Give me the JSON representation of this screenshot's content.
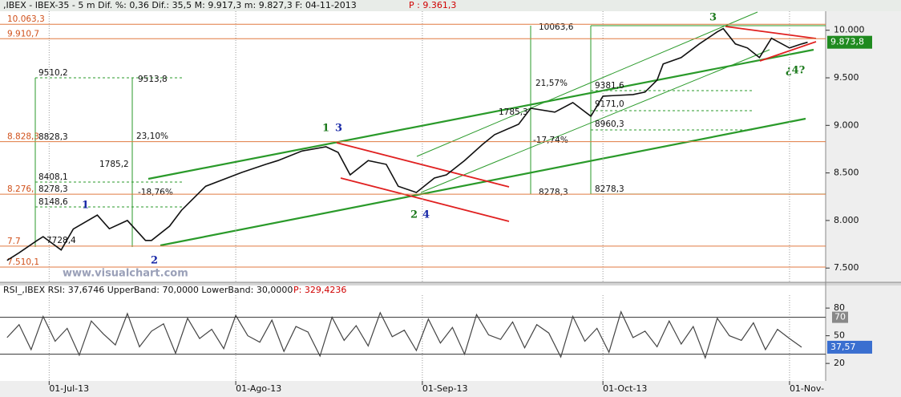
{
  "header": {
    "text": ",IBEX - IBEX-35 - 5 m Dif. %: 0,36 Dif.: 35,5 M: 9.917,3 m: 9.827,3 F: 04-11-2013",
    "price": "P : 9.361,3"
  },
  "watermark": "www.visualchart.com",
  "chart_data": [
    {
      "type": "line",
      "color": "#111111",
      "x": [
        0,
        2,
        5,
        6,
        9,
        11,
        15,
        17,
        20,
        23,
        24,
        27,
        29,
        33,
        39,
        43,
        45,
        49,
        53,
        55,
        57,
        60,
        63,
        65,
        68,
        71,
        73,
        76,
        79,
        81,
        85,
        87,
        91,
        94,
        97,
        99,
        104,
        106,
        108,
        109,
        112,
        115,
        118,
        119,
        121,
        123,
        125,
        127,
        130,
        132,
        133
      ],
      "values": [
        7580,
        7660,
        7790,
        7830,
        7690,
        7910,
        8057,
        7913,
        8000,
        7790,
        7790,
        7940,
        8108,
        8360,
        8505,
        8590,
        8630,
        8730,
        8775,
        8716,
        8480,
        8630,
        8590,
        8360,
        8294,
        8446,
        8480,
        8630,
        8800,
        8902,
        9012,
        9180,
        9139,
        9240,
        9096,
        9307,
        9324,
        9350,
        9476,
        9645,
        9713,
        9856,
        9983,
        10017,
        9856,
        9814,
        9713,
        9916,
        9814,
        9856,
        9873.8
      ],
      "xlim": [
        -0.5,
        136
      ],
      "ylim": [
        7350,
        10200
      ],
      "yticks": [
        {
          "value": 10000,
          "label": "10.000"
        },
        {
          "value": 9500,
          "label": "9.500"
        },
        {
          "value": 9000,
          "label": "9.000"
        },
        {
          "value": 8500,
          "label": "8.500"
        },
        {
          "value": 8000,
          "label": "8.000"
        },
        {
          "value": 7500,
          "label": "7.500"
        }
      ],
      "levels": [
        {
          "value": 10063.3,
          "label": "10.063,3"
        },
        {
          "value": 9910.7,
          "label": "9.910,7"
        },
        {
          "value": 8828.3,
          "label": "8.828,3"
        },
        {
          "value": 8276,
          "label": "8.276,"
        },
        {
          "value": 7730,
          "label": "7.7"
        },
        {
          "value": 7510.1,
          "label": "7.510,1"
        }
      ],
      "last_value": {
        "value": 9873.8,
        "label": "9.873,8"
      },
      "annotations": [
        "9510,2",
        "9513,8",
        "23,10%",
        "1785,2",
        "8408,1",
        "8278,3",
        "-18,76%",
        "8148,6",
        "7728,4",
        "10063,6",
        "21,57%",
        "1785,3",
        "9381,6",
        "9171,0",
        "8960,3",
        "-17,74%",
        "8278,3",
        "8278,3",
        "8828,3"
      ],
      "waves": [
        "1",
        "2",
        "1",
        "3",
        "2",
        "4",
        "3",
        "¿4?"
      ]
    },
    {
      "type": "line",
      "title": "RSI_,IBEX RSI: 37,6746 UpperBand: 70,0000 LowerBand: 30,0000",
      "title_price": "P: 329,4236",
      "color": "#444444",
      "x": [
        0,
        2,
        4,
        6,
        8,
        10,
        12,
        14,
        16,
        18,
        20,
        22,
        24,
        26,
        28,
        30,
        32,
        34,
        36,
        38,
        40,
        42,
        44,
        46,
        48,
        50,
        52,
        54,
        56,
        58,
        60,
        62,
        64,
        66,
        68,
        70,
        72,
        74,
        76,
        78,
        80,
        82,
        84,
        86,
        88,
        90,
        92,
        94,
        96,
        98,
        100,
        102,
        104,
        106,
        108,
        110,
        112,
        114,
        116,
        118,
        120,
        122,
        124,
        126,
        128,
        130,
        132
      ],
      "values": [
        48,
        62,
        35,
        71,
        44,
        58,
        29,
        66,
        52,
        40,
        74,
        38,
        55,
        63,
        31,
        69,
        47,
        57,
        36,
        72,
        50,
        43,
        67,
        33,
        60,
        54,
        28,
        70,
        45,
        61,
        39,
        75,
        49,
        56,
        34,
        68,
        42,
        59,
        30,
        73,
        51,
        46,
        65,
        37,
        62,
        53,
        27,
        71,
        44,
        58,
        32,
        76,
        48,
        55,
        38,
        66,
        41,
        60,
        26,
        69,
        50,
        45,
        64,
        35,
        57,
        47,
        37.57
      ],
      "xlim": [
        -0.5,
        136
      ],
      "ylim": [
        1,
        94
      ],
      "yticks": [
        20,
        50,
        80
      ],
      "bands": [
        70,
        30
      ],
      "last_value": {
        "value": 37.57,
        "label": "37,57"
      },
      "xticks": [
        {
          "value": 7,
          "label": "01-Jul-13"
        },
        {
          "value": 38,
          "label": "01-Ago-13"
        },
        {
          "value": 69,
          "label": "01-Sep-13"
        },
        {
          "value": 99,
          "label": "01-Oct-13"
        },
        {
          "value": 130,
          "label": "01-Nov-"
        }
      ]
    }
  ]
}
